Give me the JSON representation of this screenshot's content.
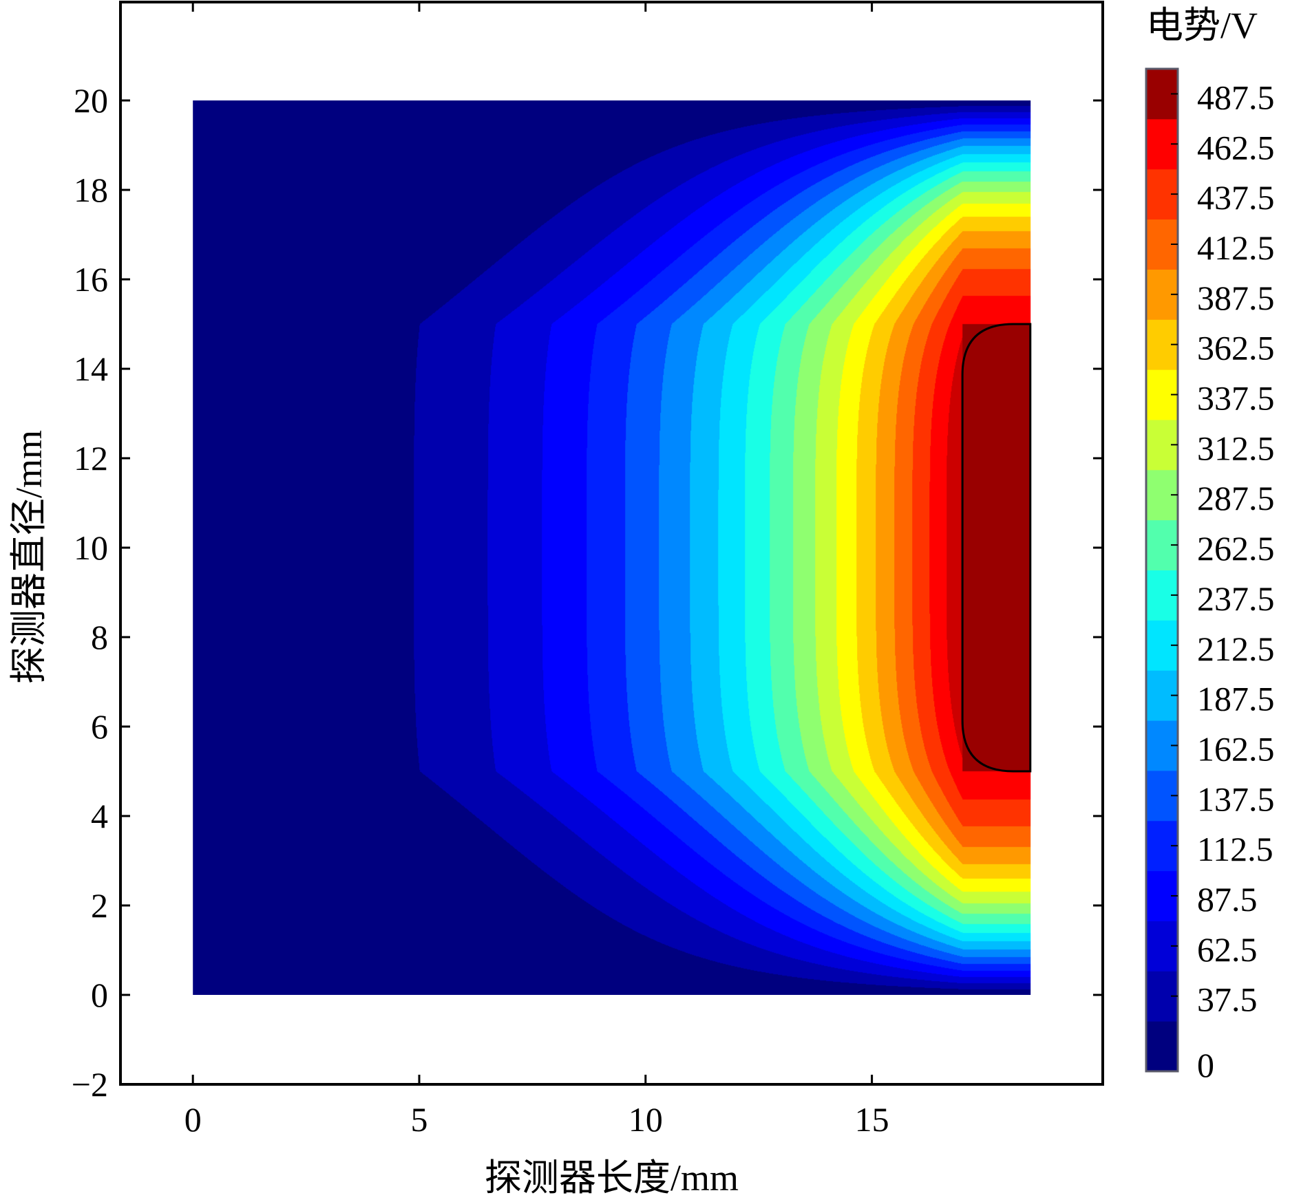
{
  "chart_data": {
    "type": "heatmap",
    "subtype": "filled-contour",
    "xlabel": "探测器长度/mm",
    "ylabel": "探测器直径/mm",
    "xlim": [
      -1.6,
      20.1
    ],
    "ylim": [
      -2,
      22.2
    ],
    "x_ticks": [
      0,
      5,
      10,
      15
    ],
    "y_ticks": [
      -2,
      0,
      2,
      4,
      6,
      8,
      10,
      12,
      14,
      16,
      18,
      20
    ],
    "x_tick_labels": [
      "0",
      "5",
      "10",
      "15"
    ],
    "y_tick_labels": [
      "−2",
      "0",
      "2",
      "4",
      "6",
      "8",
      "10",
      "12",
      "14",
      "16",
      "18",
      "20"
    ],
    "domain": {
      "x": [
        0,
        18.5
      ],
      "y": [
        0,
        20
      ]
    },
    "electrode": {
      "x": [
        17,
        18.5
      ],
      "y": [
        5,
        15
      ],
      "potential": 500
    },
    "colorbar": {
      "title": "电势/V",
      "levels": [
        0,
        25,
        50,
        75,
        100,
        125,
        150,
        175,
        200,
        225,
        250,
        275,
        300,
        325,
        350,
        375,
        400,
        425,
        450,
        475,
        500
      ],
      "tick_labels": [
        "0",
        "37.5",
        "62.5",
        "87.5",
        "112.5",
        "137.5",
        "162.5",
        "187.5",
        "212.5",
        "237.5",
        "262.5",
        "287.5",
        "312.5",
        "337.5",
        "362.5",
        "387.5",
        "412.5",
        "437.5",
        "462.5",
        "487.5"
      ],
      "colors": [
        "#00007f",
        "#0000ad",
        "#0000d8",
        "#0000ff",
        "#0020ff",
        "#0054ff",
        "#0088ff",
        "#00bcff",
        "#00e5ff",
        "#19ffe6",
        "#52ffad",
        "#8fff70",
        "#c9ff36",
        "#ffff00",
        "#ffcc00",
        "#ff9900",
        "#ff6600",
        "#ff3300",
        "#ff0000",
        "#cc0000"
      ],
      "max_color": "#990000"
    }
  }
}
